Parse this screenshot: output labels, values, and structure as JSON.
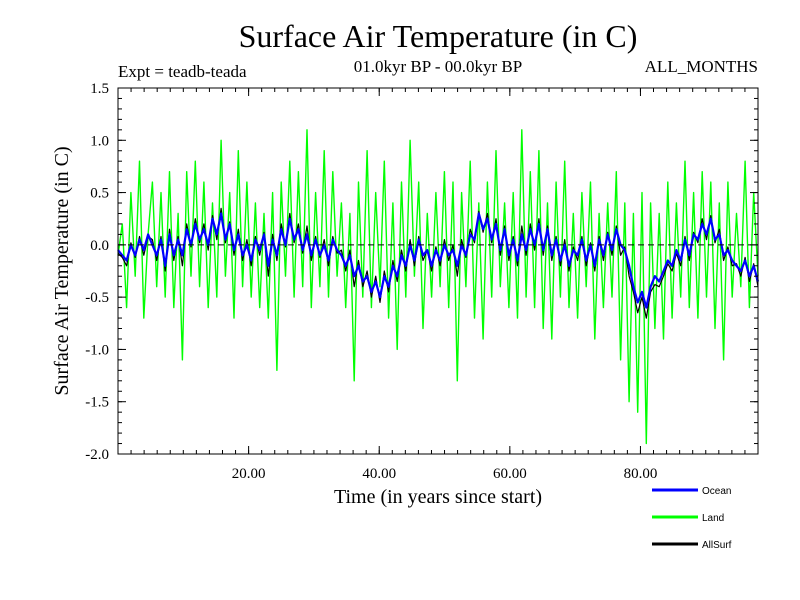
{
  "chart_data": {
    "type": "line",
    "title": "Surface Air Temperature (in C)",
    "subtitle_left": "Expt = teadb-teada",
    "subtitle_center": "01.0kyr BP - 00.0kyr BP",
    "subtitle_right": "ALL_MONTHS",
    "xlabel": "Time (in years since start)",
    "ylabel": "Surface Air Temperature (in C)",
    "xlim": [
      0,
      98
    ],
    "ylim": [
      -2.0,
      1.5
    ],
    "x_ticks": [
      20,
      40,
      60,
      80
    ],
    "x_tick_labels": [
      "20.00",
      "40.00",
      "60.00",
      "80.00"
    ],
    "y_ticks": [
      1.5,
      1.0,
      0.5,
      0.0,
      -0.5,
      -1.0,
      -1.5,
      -2.0
    ],
    "y_tick_labels": [
      "1.5",
      "1.0",
      "0.5",
      "0.0",
      "-0.5",
      "-1.0",
      "-1.5",
      "-2.0"
    ],
    "reference_line": 0.0,
    "x_step": 2,
    "series": [
      {
        "name": "Land",
        "color": "#00ff00",
        "values": [
          -0.1,
          0.2,
          -0.6,
          0.5,
          -0.3,
          0.8,
          -0.7,
          0.1,
          0.6,
          -0.4,
          0.5,
          -0.5,
          0.7,
          -0.6,
          0.3,
          -1.1,
          0.7,
          -0.3,
          0.8,
          -0.4,
          0.6,
          -0.6,
          0.4,
          -0.5,
          1.0,
          -0.3,
          0.5,
          -0.7,
          0.9,
          -0.4,
          0.6,
          -0.5,
          0.4,
          -0.6,
          0.3,
          -0.7,
          0.5,
          -1.2,
          0.6,
          -0.3,
          0.8,
          -0.5,
          0.7,
          -0.4,
          1.1,
          -0.6,
          0.5,
          -0.4,
          0.9,
          -0.5,
          0.7,
          -0.3,
          0.4,
          -0.6,
          0.3,
          -1.3,
          0.6,
          -0.5,
          0.9,
          -0.6,
          0.5,
          -0.4,
          0.8,
          -0.7,
          0.4,
          -1.0,
          0.6,
          -0.5,
          1.0,
          -0.3,
          0.6,
          -0.8,
          0.3,
          -0.5,
          0.5,
          -0.4,
          0.7,
          -0.6,
          0.6,
          -1.3,
          0.5,
          -0.4,
          0.8,
          -0.7,
          0.4,
          -0.9,
          0.6,
          -0.5,
          0.9,
          -0.4,
          0.4,
          -0.6,
          0.5,
          -0.7,
          1.1,
          -0.5,
          0.7,
          -0.6,
          0.9,
          -0.8,
          0.4,
          -0.9,
          0.6,
          -0.5,
          0.8,
          -0.6,
          0.3,
          -0.7,
          0.5,
          -0.4,
          0.6,
          -0.9,
          0.3,
          -0.6,
          0.4,
          -0.5,
          0.7,
          -1.1,
          0.4,
          -1.5,
          0.3,
          -1.6,
          0.5,
          -1.9,
          0.4,
          -0.8,
          0.3,
          -0.9,
          0.6,
          -0.7,
          0.4,
          -0.5,
          0.8,
          -0.6,
          0.5,
          -0.7,
          0.7,
          -0.5,
          0.6,
          -0.8,
          0.4,
          -1.1,
          0.6,
          -0.5,
          0.3,
          -0.4,
          0.8,
          -0.6,
          0.5,
          -0.3
        ]
      },
      {
        "name": "Ocean",
        "color": "#0000ff",
        "values": [
          -0.05,
          -0.1,
          -0.15,
          0.0,
          -0.1,
          0.05,
          -0.05,
          0.1,
          0.0,
          -0.1,
          0.05,
          -0.2,
          0.1,
          -0.1,
          0.05,
          -0.1,
          0.15,
          0.0,
          0.2,
          0.05,
          0.15,
          0.0,
          0.25,
          0.1,
          0.3,
          0.05,
          0.2,
          -0.05,
          0.1,
          -0.1,
          0.0,
          -0.15,
          0.05,
          -0.05,
          0.1,
          -0.2,
          0.05,
          -0.1,
          0.15,
          0.0,
          0.25,
          0.05,
          0.15,
          -0.05,
          0.1,
          -0.1,
          0.05,
          -0.1,
          0.0,
          -0.15,
          0.05,
          -0.05,
          -0.1,
          -0.2,
          -0.1,
          -0.3,
          -0.2,
          -0.35,
          -0.3,
          -0.45,
          -0.35,
          -0.5,
          -0.3,
          -0.4,
          -0.2,
          -0.3,
          -0.1,
          -0.2,
          0.0,
          -0.15,
          0.05,
          -0.1,
          -0.05,
          -0.2,
          -0.05,
          -0.15,
          0.0,
          -0.1,
          -0.05,
          -0.2,
          0.0,
          -0.1,
          0.1,
          0.05,
          0.3,
          0.15,
          0.25,
          0.05,
          0.2,
          -0.05,
          0.15,
          -0.1,
          0.05,
          -0.15,
          0.1,
          -0.05,
          0.15,
          0.0,
          0.2,
          -0.05,
          0.15,
          -0.1,
          0.05,
          -0.15,
          0.0,
          -0.2,
          -0.05,
          -0.1,
          0.05,
          -0.15,
          0.0,
          -0.2,
          0.05,
          -0.1,
          0.1,
          -0.05,
          0.15,
          0.0,
          -0.05,
          -0.2,
          -0.4,
          -0.55,
          -0.45,
          -0.6,
          -0.4,
          -0.3,
          -0.35,
          -0.25,
          -0.15,
          -0.2,
          -0.05,
          -0.15,
          0.05,
          -0.1,
          0.1,
          0.05,
          0.2,
          0.1,
          0.25,
          0.05,
          0.1,
          -0.1,
          -0.05,
          -0.15,
          -0.2,
          -0.25,
          -0.15,
          -0.3,
          -0.2,
          -0.35
        ]
      },
      {
        "name": "AllSurf",
        "color": "#000000",
        "values": [
          -0.08,
          -0.12,
          -0.2,
          0.02,
          -0.12,
          0.08,
          -0.1,
          0.08,
          0.05,
          -0.15,
          0.08,
          -0.25,
          0.15,
          -0.15,
          0.08,
          -0.2,
          0.2,
          -0.02,
          0.25,
          0.02,
          0.2,
          -0.05,
          0.28,
          0.05,
          0.35,
          0.02,
          0.22,
          -0.1,
          0.15,
          -0.15,
          0.05,
          -0.2,
          0.08,
          -0.1,
          0.12,
          -0.3,
          0.1,
          -0.15,
          0.2,
          -0.02,
          0.3,
          0.02,
          0.2,
          -0.08,
          0.18,
          -0.15,
          0.08,
          -0.12,
          0.05,
          -0.2,
          0.08,
          -0.08,
          -0.05,
          -0.25,
          -0.05,
          -0.4,
          -0.15,
          -0.4,
          -0.25,
          -0.5,
          -0.3,
          -0.55,
          -0.25,
          -0.45,
          -0.15,
          -0.35,
          -0.05,
          -0.25,
          0.05,
          -0.2,
          0.08,
          -0.15,
          -0.05,
          -0.25,
          -0.02,
          -0.2,
          0.05,
          -0.15,
          0.0,
          -0.3,
          0.05,
          -0.12,
          0.15,
          0.02,
          0.32,
          0.12,
          0.3,
          0.02,
          0.25,
          -0.1,
          0.18,
          -0.15,
          0.08,
          -0.2,
          0.18,
          -0.1,
          0.2,
          -0.05,
          0.25,
          -0.1,
          0.18,
          -0.15,
          0.08,
          -0.2,
          0.05,
          -0.25,
          -0.02,
          -0.15,
          0.08,
          -0.2,
          0.02,
          -0.25,
          0.08,
          -0.15,
          0.12,
          -0.1,
          0.18,
          -0.1,
          -0.02,
          -0.3,
          -0.45,
          -0.65,
          -0.5,
          -0.7,
          -0.45,
          -0.38,
          -0.4,
          -0.3,
          -0.18,
          -0.25,
          -0.08,
          -0.2,
          0.08,
          -0.15,
          0.12,
          0.02,
          0.25,
          0.05,
          0.28,
          0.02,
          0.15,
          -0.15,
          -0.02,
          -0.2,
          -0.18,
          -0.3,
          -0.12,
          -0.35,
          -0.18,
          -0.4
        ]
      }
    ],
    "legend": [
      {
        "label": "Ocean",
        "color": "#0000ff"
      },
      {
        "label": "Land",
        "color": "#00ff00"
      },
      {
        "label": "AllSurf",
        "color": "#000000"
      }
    ],
    "legend_position": "bottom-right"
  }
}
